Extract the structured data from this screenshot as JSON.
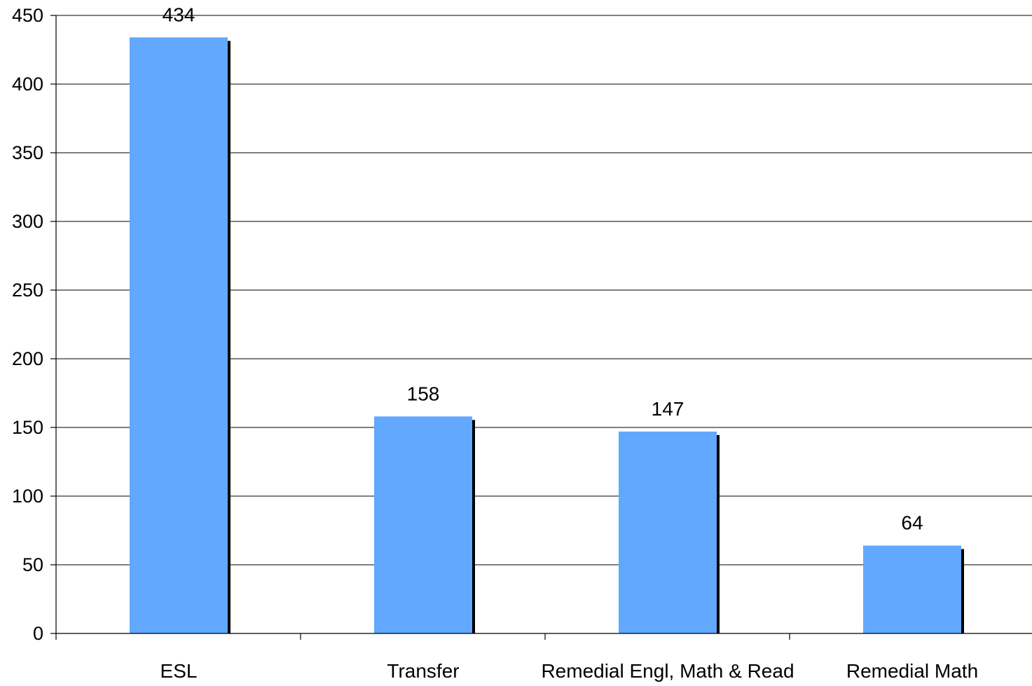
{
  "chart_data": {
    "type": "bar",
    "categories": [
      "ESL",
      "Transfer",
      "Remedial Engl, Math & Read",
      "Remedial Math"
    ],
    "values": [
      434,
      158,
      147,
      64
    ],
    "data_labels": [
      "434",
      "158",
      "147",
      "64"
    ],
    "title": "",
    "xlabel": "",
    "ylabel": "",
    "ylim": [
      0,
      450
    ],
    "yticks": [
      0,
      50,
      100,
      150,
      200,
      250,
      300,
      350,
      400,
      450
    ],
    "ytick_labels": [
      "0",
      "50",
      "100",
      "150",
      "200",
      "250",
      "300",
      "350",
      "400",
      "450"
    ],
    "grid": true,
    "legend": "none",
    "colors": {
      "bar": "#62a8ff",
      "bar_shadow": "#000000",
      "grid": "#000000"
    }
  }
}
